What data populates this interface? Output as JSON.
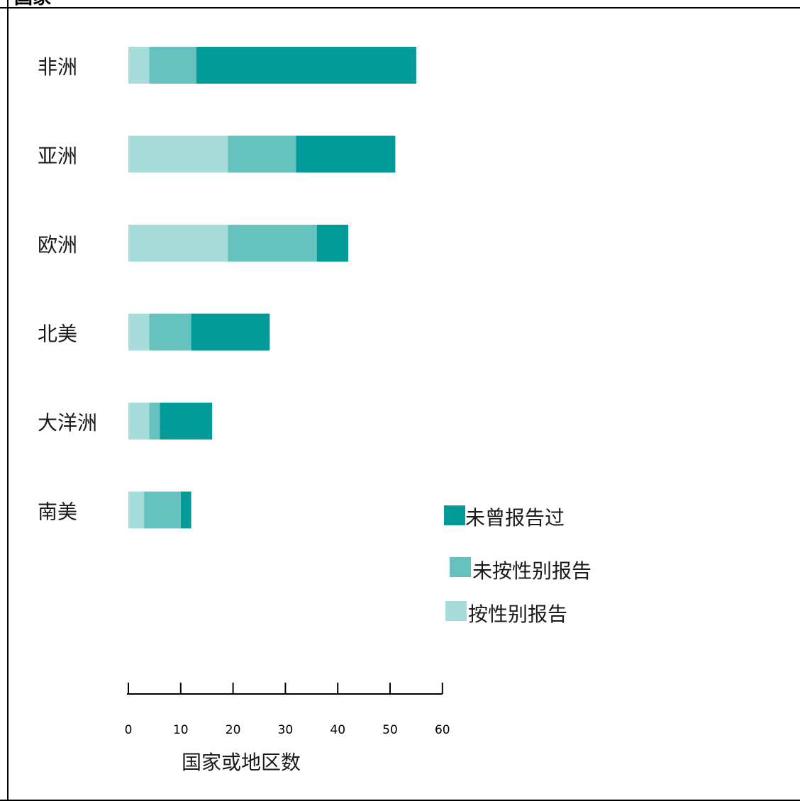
{
  "top_label": "国家",
  "chart_data": {
    "type": "bar",
    "orientation": "horizontal",
    "stacked": true,
    "categories": [
      "非洲",
      "亚洲",
      "欧洲",
      "北美",
      "大洋洲",
      "南美"
    ],
    "series": [
      {
        "name": "按性别报告",
        "color": "#a6dcd9",
        "values": [
          4,
          19,
          19,
          4,
          4,
          3
        ]
      },
      {
        "name": "未按性别报告",
        "color": "#66c2bf",
        "values": [
          9,
          13,
          17,
          8,
          2,
          7
        ]
      },
      {
        "name": "未曾报告过",
        "color": "#009b99",
        "values": [
          42,
          19,
          6,
          15,
          10,
          2
        ]
      }
    ],
    "xlabel": "国家或地区数",
    "xticks": [
      0,
      10,
      20,
      30,
      40,
      50,
      60
    ],
    "xlim": [
      0,
      60
    ],
    "grid": false,
    "legend": {
      "placement": "bottom-right",
      "items": [
        {
          "label": "未曾报告过",
          "color": "#009b99"
        },
        {
          "label": "未按性别报告",
          "color": "#66c2bf"
        },
        {
          "label": "按性别报告",
          "color": "#a6dcd9"
        }
      ]
    }
  }
}
